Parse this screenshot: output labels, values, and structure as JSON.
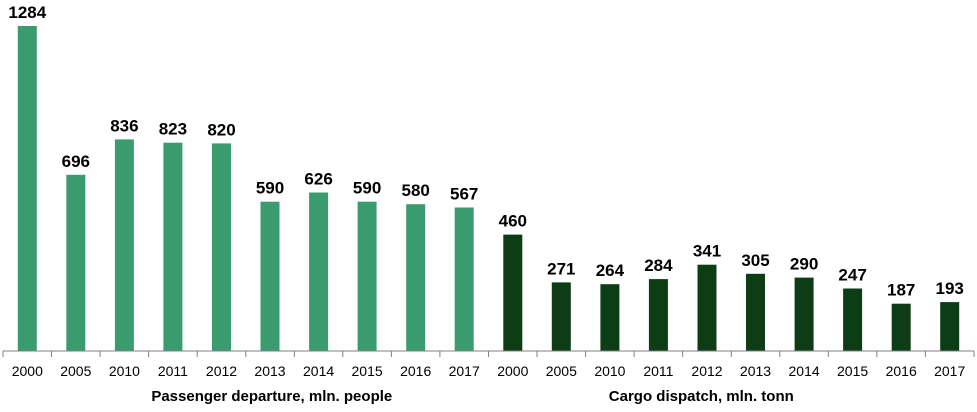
{
  "chart_data": {
    "type": "bar",
    "title": "",
    "ylabel": "",
    "ylim": [
      0,
      1284
    ],
    "grid": false,
    "legend": "none",
    "colors": {
      "passenger": "#3a9b6e",
      "cargo": "#0d3d14",
      "axis": "#808080"
    },
    "groups": [
      {
        "name": "Passenger departure, mln. people",
        "color_key": "passenger",
        "categories": [
          "2000",
          "2005",
          "2010",
          "2011",
          "2012",
          "2013",
          "2014",
          "2015",
          "2016",
          "2017"
        ],
        "values": [
          1284,
          696,
          836,
          823,
          820,
          590,
          626,
          590,
          580,
          567
        ]
      },
      {
        "name": "Cargo dispatch, mln. tonn",
        "color_key": "cargo",
        "categories": [
          "2000",
          "2005",
          "2010",
          "2011",
          "2012",
          "2013",
          "2014",
          "2015",
          "2016",
          "2017"
        ],
        "values": [
          460,
          271,
          264,
          284,
          341,
          305,
          290,
          247,
          187,
          193
        ]
      }
    ]
  }
}
